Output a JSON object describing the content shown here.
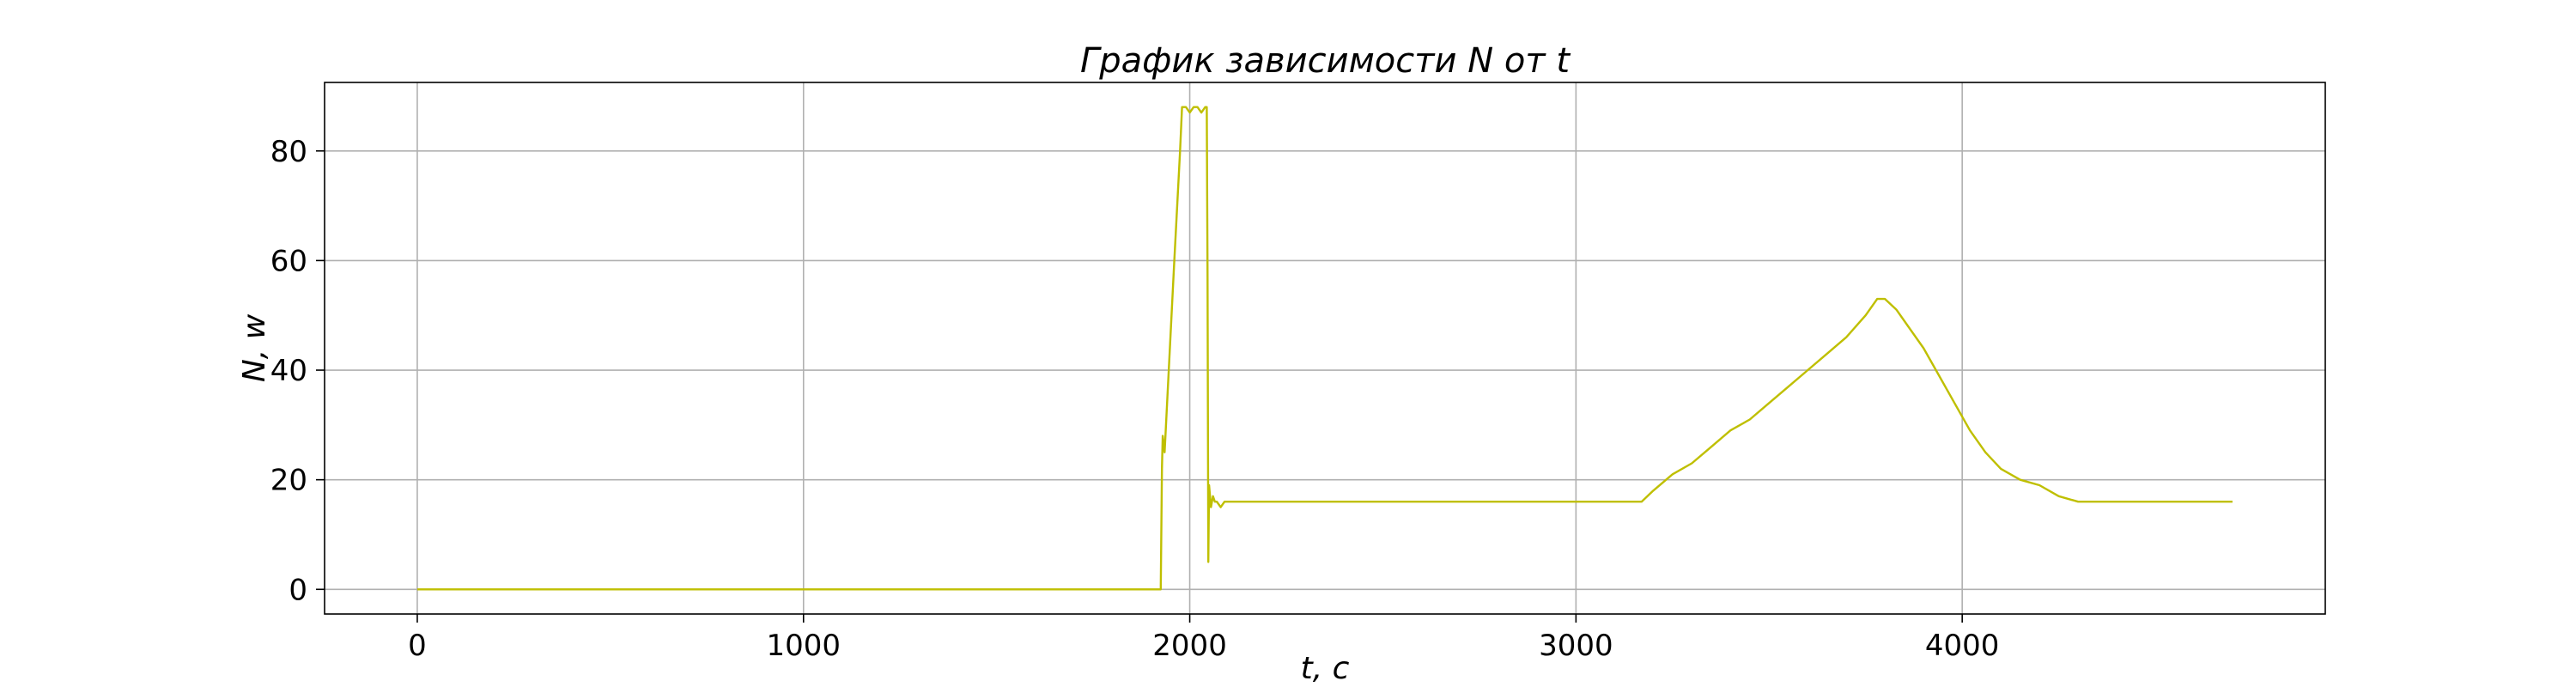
{
  "chart_data": {
    "type": "line",
    "title": "График зависимости N от t",
    "xlabel": "t, c",
    "ylabel": "N, w",
    "xlim": [
      -240,
      4940
    ],
    "ylim": [
      -4.5,
      92.5
    ],
    "xticks": [
      0,
      1000,
      2000,
      3000,
      4000
    ],
    "yticks": [
      0,
      20,
      40,
      60,
      80
    ],
    "grid": true,
    "legend": "none",
    "series": [
      {
        "color": "#bfbf00",
        "x": [
          0,
          500,
          1000,
          1500,
          1900,
          1925,
          1928,
          1930,
          1935,
          1960,
          1975,
          1980,
          1990,
          2000,
          2010,
          2020,
          2030,
          2040,
          2044,
          2046,
          2048,
          2050,
          2055,
          2060,
          2065,
          2070,
          2080,
          2090,
          2100,
          2200,
          2300,
          2400,
          2500,
          2600,
          2700,
          2800,
          2900,
          3000,
          3100,
          3170,
          3200,
          3250,
          3300,
          3350,
          3400,
          3450,
          3500,
          3550,
          3600,
          3650,
          3700,
          3750,
          3780,
          3800,
          3830,
          3860,
          3900,
          3940,
          3980,
          4020,
          4060,
          4100,
          4150,
          4200,
          4250,
          4300,
          4400,
          4500,
          4600,
          4700
        ],
        "y": [
          0,
          0,
          0,
          0,
          0,
          0,
          22,
          28,
          25,
          60,
          80,
          88,
          88,
          87,
          88,
          88,
          87,
          88,
          88,
          57,
          5,
          19,
          15,
          17,
          16,
          16,
          15,
          16,
          16,
          16,
          16,
          16,
          16,
          16,
          16,
          16,
          16,
          16,
          16,
          16,
          18,
          21,
          23,
          26,
          29,
          31,
          34,
          37,
          40,
          43,
          46,
          50,
          53,
          53,
          51,
          48,
          44,
          39,
          34,
          29,
          25,
          22,
          20,
          19,
          17,
          16,
          16,
          16,
          16,
          16
        ]
      }
    ]
  }
}
